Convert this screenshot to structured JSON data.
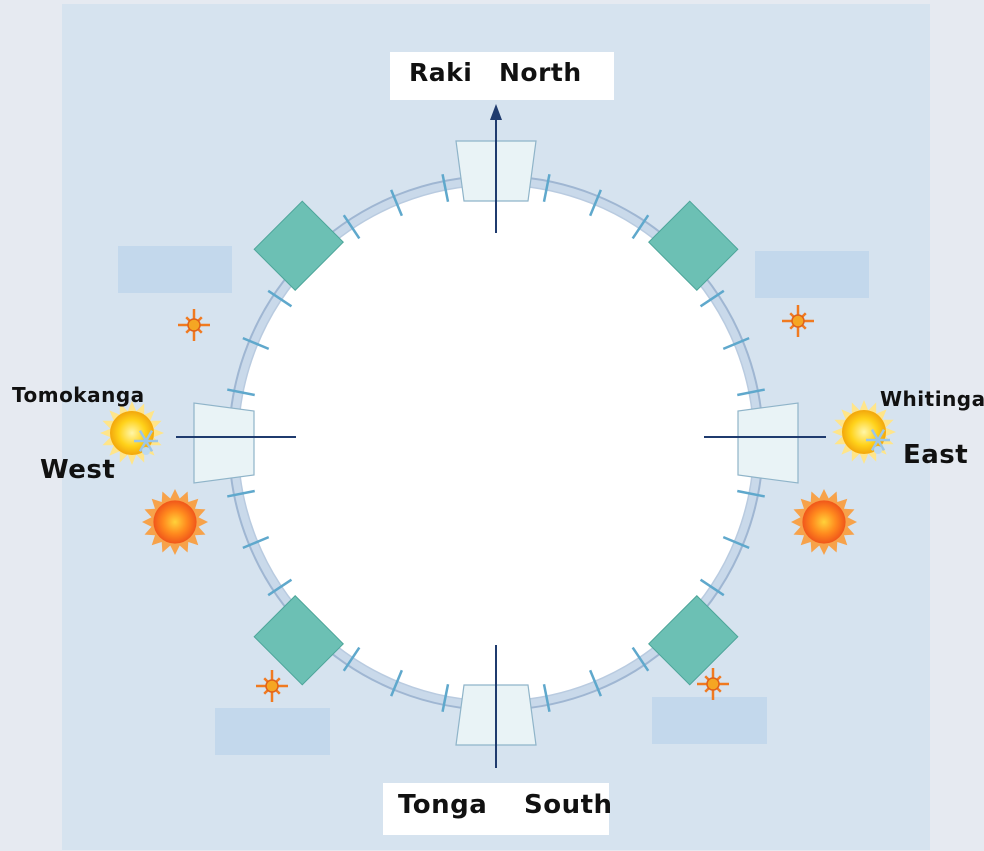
{
  "labels": {
    "north_maori": "Raki",
    "north_english": "North",
    "south_maori": "Tonga",
    "south_english": "South",
    "west_maori": "Tomokanga",
    "west_english": "West",
    "east_maori": "Whitinga",
    "east_english": "East"
  },
  "colors": {
    "background": "#e6eaf1",
    "panel": "#d6e3ef",
    "circle_fill": "#ffffff",
    "ring": "#9fb6d2",
    "tick": "#5fa8cc",
    "pillar": "#6cc0b4",
    "gate": "#e9f3f6",
    "axis": "#1f3b6e",
    "blank_box": "#c3d8ec"
  },
  "icons": [
    "sun-icon",
    "small-star-sun-icon",
    "winter-sun-icon"
  ]
}
